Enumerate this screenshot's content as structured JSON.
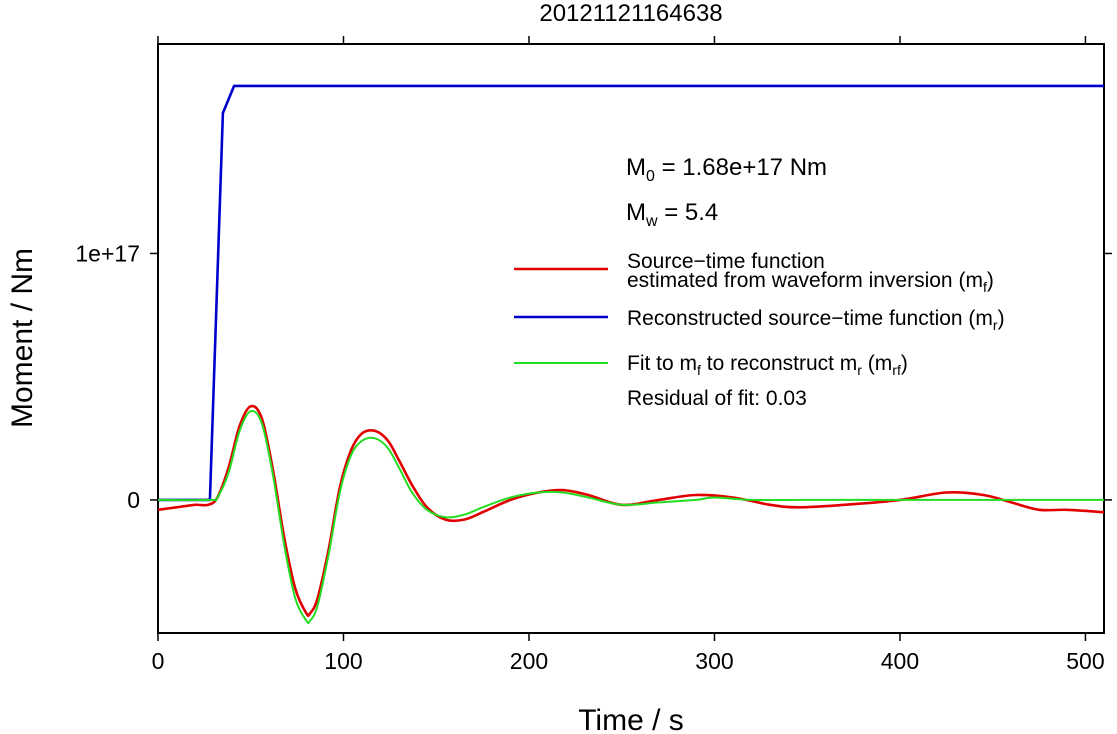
{
  "chart_data": {
    "type": "line",
    "title": "20121121164638",
    "xlabel": "Time / s",
    "ylabel": "Moment / Nm",
    "xlim": [
      0,
      510
    ],
    "ylim": [
      -5.4e+16,
      1.85e+17
    ],
    "x_ticks": [
      0,
      100,
      200,
      300,
      400,
      500
    ],
    "x_tick_labels": [
      "0",
      "100",
      "200",
      "300",
      "400",
      "500"
    ],
    "y_ticks": [
      0,
      1e+17
    ],
    "y_tick_labels": [
      "0",
      "1e+17"
    ],
    "grid": false,
    "legend_position": "right",
    "annotations": {
      "m0": {
        "sym": "M",
        "sub": "0",
        "rest": " = 1.68e+17 Nm"
      },
      "mw": {
        "sym": "M",
        "sub": "w",
        "rest": " = 5.4"
      },
      "residual": "Residual of fit: 0.03"
    },
    "legend": {
      "red_line1": "Source−time function",
      "red_line2_pre": "estimated from waveform inversion (m",
      "red_line2_sub": "f",
      "red_line2_post": ")",
      "blue_pre": "Reconstructed source−time function (m",
      "blue_sub": "r",
      "blue_post": ")",
      "green_pre": "Fit to m",
      "green_sub1": "f",
      "green_mid": " to reconstruct m",
      "green_sub2": "r",
      "green_mid2": " (m",
      "green_sub3": "rf",
      "green_post": ")"
    },
    "series": [
      {
        "key": "reconstructed",
        "color": "#0000cc",
        "x": [
          0,
          28,
          35,
          41,
          510
        ],
        "y": [
          0,
          0,
          1.57e+17,
          1.68e+17,
          1.68e+17
        ]
      },
      {
        "key": "estimated",
        "color": "#e00000",
        "x": [
          0,
          10,
          20,
          27,
          32,
          38,
          44,
          50,
          56,
          62,
          68,
          74,
          80,
          82,
          86,
          92,
          98,
          104,
          110,
          117,
          124,
          130,
          137,
          145,
          155,
          165,
          175,
          190,
          205,
          218,
          232,
          250,
          270,
          290,
          310,
          330,
          345,
          370,
          400,
          425,
          445,
          460,
          475,
          490,
          510
        ],
        "y": [
          -4000000000000000.0,
          -3000000000000000.0,
          -2000000000000000.0,
          -2000000000000000.0,
          1000000000000000.0,
          1.3e+16,
          3e+16,
          3.8e+16,
          3.3e+16,
          1.2e+16,
          -1.5e+16,
          -3.6e+16,
          -4.6e+16,
          -4.6e+16,
          -4e+16,
          -2e+16,
          5000000000000000.0,
          2e+16,
          2.7e+16,
          2.8e+16,
          2.4e+16,
          1.6e+16,
          6000000000000000.0,
          -3000000000000000.0,
          -8000000000000000.0,
          -8000000000000000.0,
          -5000000000000000.0,
          0.0,
          3000000000000000.0,
          4000000000000000.0,
          2000000000000000.0,
          -2000000000000000.0,
          0.0,
          2000000000000000.0,
          1000000000000000.0,
          -2000000000000000.0,
          -3000000000000000.0,
          -2000000000000000.0,
          0.0,
          3000000000000000.0,
          2000000000000000.0,
          -1000000000000000.0,
          -4000000000000000.0,
          -4000000000000000.0,
          -5000000000000000.0
        ]
      },
      {
        "key": "fit",
        "color": "#22dd22",
        "x": [
          0,
          28,
          32,
          38,
          44,
          50,
          56,
          62,
          68,
          74,
          80,
          82,
          86,
          92,
          98,
          104,
          110,
          117,
          124,
          130,
          137,
          145,
          155,
          165,
          175,
          190,
          205,
          218,
          232,
          250,
          270,
          290,
          300,
          320,
          350,
          400,
          450,
          510
        ],
        "y": [
          0,
          0,
          1000000000000000.0,
          1.1e+16,
          2.8e+16,
          3.6e+16,
          3.1e+16,
          1e+16,
          -1.8e+16,
          -4e+16,
          -4.9e+16,
          -4.9e+16,
          -4.3e+16,
          -2.2e+16,
          3000000000000000.0,
          1.8e+16,
          2.4e+16,
          2.5e+16,
          2.1e+16,
          1.3e+16,
          3000000000000000.0,
          -4000000000000000.0,
          -7000000000000000.0,
          -6000000000000000.0,
          -3000000000000000.0,
          1000000000000000.0,
          3000000000000000.0,
          3000000000000000.0,
          1000000000000000.0,
          -2000000000000000.0,
          -1000000000000000.0,
          0.0,
          1000000000000000.0,
          0.0,
          0.0,
          0.0,
          0.0,
          0.0
        ]
      }
    ]
  }
}
